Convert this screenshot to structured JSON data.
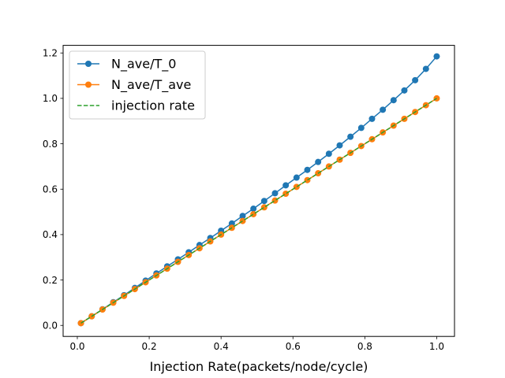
{
  "chart_data": {
    "type": "line",
    "title": "",
    "xlabel": "Injection Rate(packets/node/cycle)",
    "ylabel": "",
    "xlim": [
      -0.0395,
      1.0495
    ],
    "ylim": [
      -0.0485,
      1.2335
    ],
    "xticks": [
      0.0,
      0.2,
      0.4,
      0.6,
      0.8,
      1.0
    ],
    "xtick_labels": [
      "0.0",
      "0.2",
      "0.4",
      "0.6",
      "0.8",
      "1.0"
    ],
    "yticks": [
      0.0,
      0.2,
      0.4,
      0.6,
      0.8,
      1.0,
      1.2
    ],
    "ytick_labels": [
      "0.0",
      "0.2",
      "0.4",
      "0.6",
      "0.8",
      "1.0",
      "1.2"
    ],
    "grid": false,
    "legend_position": "upper-left",
    "x": [
      0.01,
      0.04,
      0.07,
      0.1,
      0.13,
      0.16,
      0.19,
      0.22,
      0.25,
      0.28,
      0.31,
      0.34,
      0.37,
      0.4,
      0.43,
      0.46,
      0.49,
      0.52,
      0.55,
      0.58,
      0.61,
      0.64,
      0.67,
      0.7,
      0.73,
      0.76,
      0.79,
      0.82,
      0.85,
      0.88,
      0.91,
      0.94,
      0.97,
      1.0
    ],
    "series": [
      {
        "name": "N_ave/T_0",
        "color": "#1f77b4",
        "style": "solid-with-markers",
        "values": [
          0.01,
          0.04,
          0.071,
          0.102,
          0.133,
          0.165,
          0.197,
          0.229,
          0.26,
          0.291,
          0.322,
          0.354,
          0.385,
          0.417,
          0.449,
          0.482,
          0.514,
          0.548,
          0.582,
          0.617,
          0.651,
          0.685,
          0.72,
          0.756,
          0.793,
          0.831,
          0.87,
          0.91,
          0.95,
          0.992,
          1.035,
          1.08,
          1.13,
          1.185
        ]
      },
      {
        "name": "N_ave/T_ave",
        "color": "#ff7f0e",
        "style": "solid-with-markers",
        "values": [
          0.01,
          0.04,
          0.07,
          0.1,
          0.13,
          0.16,
          0.19,
          0.22,
          0.25,
          0.28,
          0.31,
          0.34,
          0.37,
          0.4,
          0.43,
          0.46,
          0.49,
          0.52,
          0.55,
          0.58,
          0.61,
          0.64,
          0.67,
          0.7,
          0.73,
          0.76,
          0.79,
          0.82,
          0.85,
          0.88,
          0.91,
          0.94,
          0.97,
          1.0
        ]
      },
      {
        "name": "injection rate",
        "color": "#2ca02c",
        "style": "dashed",
        "values": [
          0.01,
          0.04,
          0.07,
          0.1,
          0.13,
          0.16,
          0.19,
          0.22,
          0.25,
          0.28,
          0.31,
          0.34,
          0.37,
          0.4,
          0.43,
          0.46,
          0.49,
          0.52,
          0.55,
          0.58,
          0.61,
          0.64,
          0.67,
          0.7,
          0.73,
          0.76,
          0.79,
          0.82,
          0.85,
          0.88,
          0.91,
          0.94,
          0.97,
          1.0
        ]
      }
    ]
  }
}
